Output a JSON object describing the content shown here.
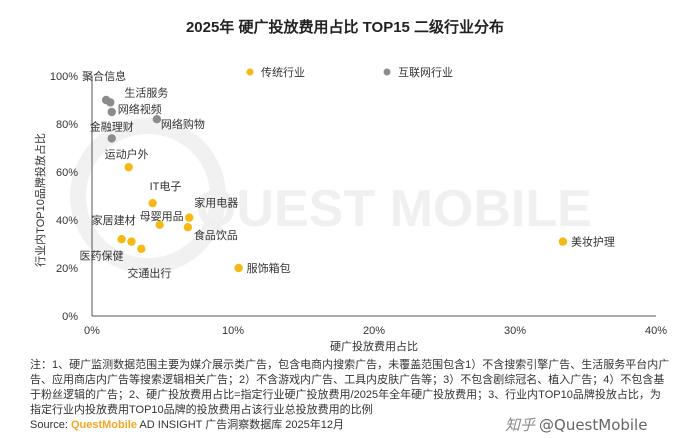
{
  "chart_data": {
    "type": "scatter",
    "title": "2025年 硬广投放费用占比 TOP15 二级行业分布",
    "xlabel": "硬广投放费用占比",
    "ylabel": "行业内TOP10品牌投放占比",
    "xlim": [
      0,
      40
    ],
    "ylim": [
      0,
      100
    ],
    "x_ticks": [
      "0%",
      "10%",
      "20%",
      "30%",
      "40%"
    ],
    "y_ticks": [
      "0%",
      "20%",
      "40%",
      "60%",
      "80%",
      "100%"
    ],
    "legend_position": "top",
    "series": [
      {
        "name": "传统行业",
        "color": "#f5b915",
        "points": [
          {
            "label": "运动户外",
            "x": 2.6,
            "y": 62
          },
          {
            "label": "IT电子",
            "x": 4.3,
            "y": 47
          },
          {
            "label": "母婴用品",
            "x": 4.8,
            "y": 38
          },
          {
            "label": "家用电器",
            "x": 6.9,
            "y": 41
          },
          {
            "label": "食品饮品",
            "x": 6.8,
            "y": 37
          },
          {
            "label": "家居建材",
            "x": 2.1,
            "y": 32
          },
          {
            "label": "医药保健",
            "x": 2.8,
            "y": 31
          },
          {
            "label": "交通出行",
            "x": 3.5,
            "y": 28
          },
          {
            "label": "服饰箱包",
            "x": 10.4,
            "y": 20
          },
          {
            "label": "美妆护理",
            "x": 33.4,
            "y": 31
          }
        ]
      },
      {
        "name": "互联网行业",
        "color": "#8c8c8c",
        "points": [
          {
            "label": "聚合信息",
            "x": 1.0,
            "y": 90
          },
          {
            "label": "生活服务",
            "x": 1.3,
            "y": 89
          },
          {
            "label": "网络视频",
            "x": 1.4,
            "y": 85
          },
          {
            "label": "网络购物",
            "x": 4.6,
            "y": 82
          },
          {
            "label": "金融理财",
            "x": 1.4,
            "y": 74
          }
        ]
      }
    ]
  },
  "notes": "注：1、硬广监测数据范围主要为媒介展示类广告，包含电商内搜索广告，未覆盖范围包含1）不含搜索引擎广告、生活服务平台内广告、应用商店内广告等搜索逻辑相关广告；2）不含游戏内广告、工具内皮肤广告等；3）不包含剧综冠名、植入广告；4）不包含基于粉丝逻辑的广告；2、硬广投放费用占比=指定行业硬广投放费用/2025年全年硬广投放费用；3、行业内TOP10品牌投放占比，为指定行业内投放费用TOP10品牌的投放费用占该行业总投放费用的比例",
  "source": {
    "prefix": "Source: ",
    "brand": "QuestMobile",
    "text": " AD INSIGHT 广告洞察数据库 2025年12月"
  },
  "watermark": {
    "background": "QUEST MOBILE",
    "badge_icon": "知乎",
    "badge_text": "@QuestMobile"
  }
}
